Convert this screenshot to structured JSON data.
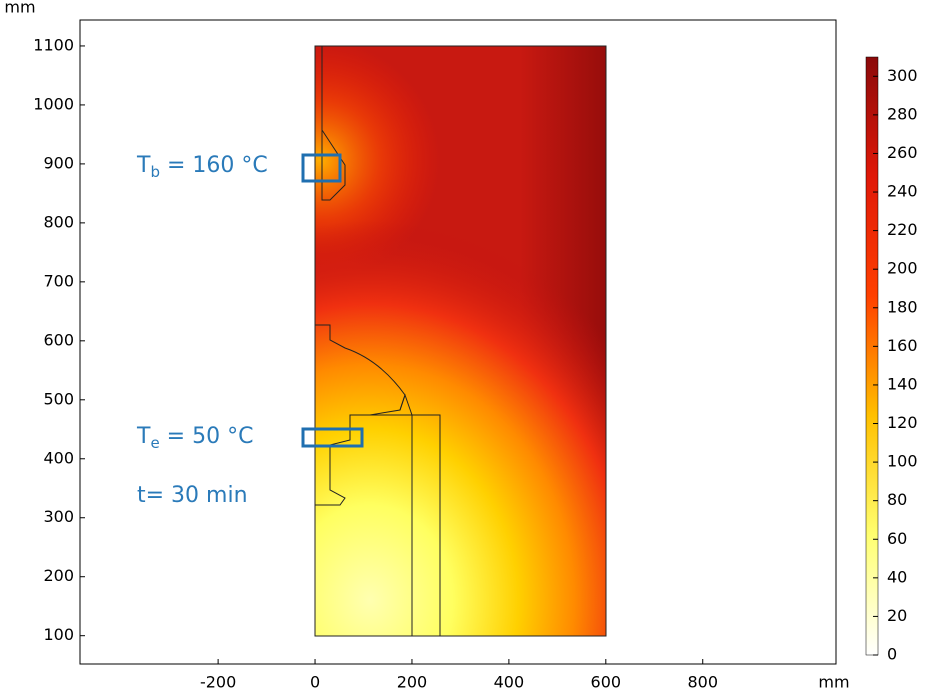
{
  "chart_data": {
    "type": "field",
    "x_unit": "mm",
    "y_unit": "mm",
    "xlim": [
      -485,
      1075
    ],
    "xticks": [
      -200,
      0,
      200,
      400,
      600,
      800
    ],
    "ylim": [
      52,
      1144
    ],
    "yticks": [
      100,
      200,
      300,
      400,
      500,
      600,
      700,
      800,
      900,
      1000,
      1100
    ],
    "colorbar": {
      "lim": [
        0,
        310
      ],
      "ticks": [
        0,
        20,
        40,
        60,
        80,
        100,
        120,
        140,
        160,
        180,
        200,
        220,
        240,
        260,
        280,
        300
      ],
      "colors": [
        "#ffffff",
        "#ffff70",
        "#ffc000",
        "#ff4000",
        "#e01808",
        "#8b0a0a"
      ]
    },
    "annotations": [
      {
        "text": "T",
        "subscript": "b",
        "suffix": " = 160 °C"
      },
      {
        "text": "T",
        "subscript": "e",
        "suffix": " = 50 °C"
      },
      {
        "text": "t= 30 min"
      }
    ]
  }
}
